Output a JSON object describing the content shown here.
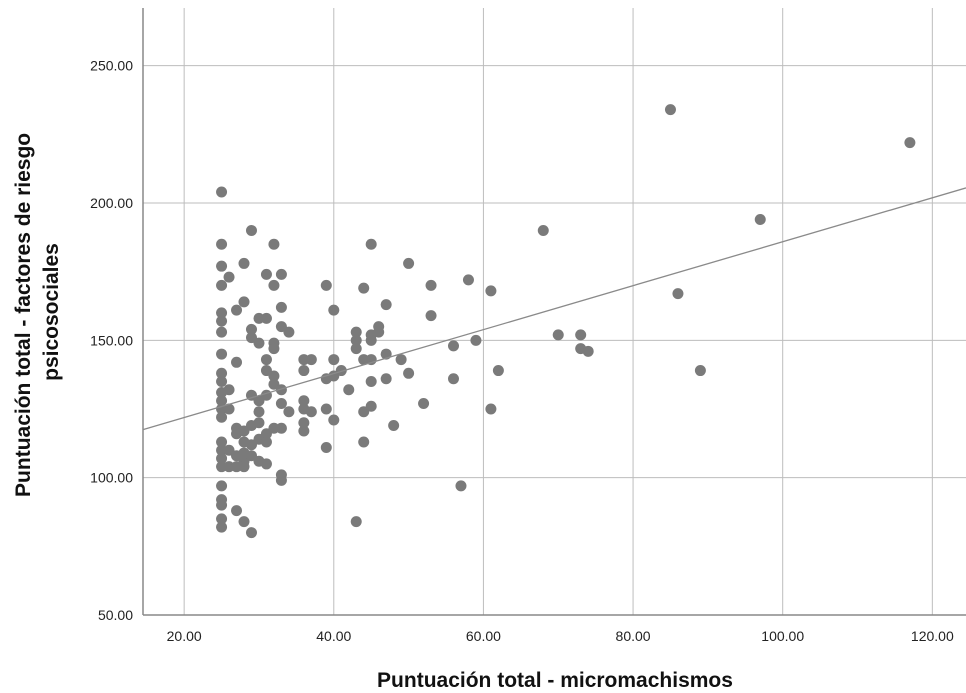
{
  "chart_data": {
    "type": "scatter",
    "title": "",
    "xlabel": "Puntuación total - micromachismos",
    "ylabel_lines": [
      "Puntuación total - factores de riesgo",
      "psicosociales"
    ],
    "xlim": [
      14.5,
      124.5
    ],
    "ylim": [
      50,
      271
    ],
    "x_ticks": [
      20,
      40,
      60,
      80,
      100,
      120
    ],
    "x_tick_labels": [
      "20.00",
      "40.00",
      "60.00",
      "80.00",
      "100.00",
      "120.00"
    ],
    "y_ticks": [
      50,
      100,
      150,
      200,
      250
    ],
    "y_tick_labels": [
      "50.00",
      "100.00",
      "150.00",
      "200.00",
      "250.00"
    ],
    "grid": true,
    "legend": "none",
    "point_color": "#7a7a7a",
    "line_color": "#8a8a8a",
    "fit_line": {
      "x": [
        14.5,
        124.5
      ],
      "y": [
        117.5,
        205.5
      ]
    },
    "points": [
      {
        "x": 25,
        "y": 204
      },
      {
        "x": 25,
        "y": 185
      },
      {
        "x": 25,
        "y": 177
      },
      {
        "x": 25,
        "y": 170
      },
      {
        "x": 25,
        "y": 160
      },
      {
        "x": 25,
        "y": 157
      },
      {
        "x": 25,
        "y": 153
      },
      {
        "x": 25,
        "y": 145
      },
      {
        "x": 25,
        "y": 138
      },
      {
        "x": 25,
        "y": 135
      },
      {
        "x": 25,
        "y": 131
      },
      {
        "x": 25,
        "y": 128
      },
      {
        "x": 25,
        "y": 125
      },
      {
        "x": 25,
        "y": 122
      },
      {
        "x": 25,
        "y": 113
      },
      {
        "x": 25,
        "y": 110
      },
      {
        "x": 25,
        "y": 107
      },
      {
        "x": 25,
        "y": 104
      },
      {
        "x": 25,
        "y": 97
      },
      {
        "x": 25,
        "y": 92
      },
      {
        "x": 25,
        "y": 90
      },
      {
        "x": 25,
        "y": 85
      },
      {
        "x": 25,
        "y": 82
      },
      {
        "x": 26,
        "y": 173
      },
      {
        "x": 26,
        "y": 132
      },
      {
        "x": 26,
        "y": 125
      },
      {
        "x": 26,
        "y": 110
      },
      {
        "x": 26,
        "y": 104
      },
      {
        "x": 27,
        "y": 161
      },
      {
        "x": 27,
        "y": 142
      },
      {
        "x": 27,
        "y": 118
      },
      {
        "x": 27,
        "y": 116
      },
      {
        "x": 27,
        "y": 108
      },
      {
        "x": 27,
        "y": 104
      },
      {
        "x": 27,
        "y": 88
      },
      {
        "x": 28,
        "y": 178
      },
      {
        "x": 28,
        "y": 164
      },
      {
        "x": 28,
        "y": 117
      },
      {
        "x": 28,
        "y": 113
      },
      {
        "x": 28,
        "y": 109
      },
      {
        "x": 28,
        "y": 106
      },
      {
        "x": 28,
        "y": 104
      },
      {
        "x": 28,
        "y": 84
      },
      {
        "x": 29,
        "y": 190
      },
      {
        "x": 29,
        "y": 154
      },
      {
        "x": 29,
        "y": 151
      },
      {
        "x": 29,
        "y": 130
      },
      {
        "x": 29,
        "y": 119
      },
      {
        "x": 29,
        "y": 112
      },
      {
        "x": 29,
        "y": 108
      },
      {
        "x": 29,
        "y": 80
      },
      {
        "x": 30,
        "y": 158
      },
      {
        "x": 30,
        "y": 149
      },
      {
        "x": 30,
        "y": 128
      },
      {
        "x": 30,
        "y": 124
      },
      {
        "x": 30,
        "y": 120
      },
      {
        "x": 30,
        "y": 114
      },
      {
        "x": 30,
        "y": 106
      },
      {
        "x": 31,
        "y": 174
      },
      {
        "x": 31,
        "y": 158
      },
      {
        "x": 31,
        "y": 143
      },
      {
        "x": 31,
        "y": 139
      },
      {
        "x": 31,
        "y": 130
      },
      {
        "x": 31,
        "y": 116
      },
      {
        "x": 31,
        "y": 113
      },
      {
        "x": 31,
        "y": 105
      },
      {
        "x": 32,
        "y": 185
      },
      {
        "x": 32,
        "y": 170
      },
      {
        "x": 32,
        "y": 149
      },
      {
        "x": 32,
        "y": 147
      },
      {
        "x": 32,
        "y": 137
      },
      {
        "x": 32,
        "y": 134
      },
      {
        "x": 32,
        "y": 118
      },
      {
        "x": 33,
        "y": 174
      },
      {
        "x": 33,
        "y": 162
      },
      {
        "x": 33,
        "y": 155
      },
      {
        "x": 33,
        "y": 132
      },
      {
        "x": 33,
        "y": 127
      },
      {
        "x": 33,
        "y": 118
      },
      {
        "x": 33,
        "y": 101
      },
      {
        "x": 33,
        "y": 99
      },
      {
        "x": 34,
        "y": 153
      },
      {
        "x": 34,
        "y": 124
      },
      {
        "x": 36,
        "y": 143
      },
      {
        "x": 36,
        "y": 139
      },
      {
        "x": 36,
        "y": 128
      },
      {
        "x": 36,
        "y": 125
      },
      {
        "x": 36,
        "y": 120
      },
      {
        "x": 36,
        "y": 117
      },
      {
        "x": 37,
        "y": 143
      },
      {
        "x": 37,
        "y": 124
      },
      {
        "x": 39,
        "y": 170
      },
      {
        "x": 39,
        "y": 136
      },
      {
        "x": 39,
        "y": 125
      },
      {
        "x": 39,
        "y": 111
      },
      {
        "x": 40,
        "y": 161
      },
      {
        "x": 40,
        "y": 143
      },
      {
        "x": 40,
        "y": 137
      },
      {
        "x": 40,
        "y": 121
      },
      {
        "x": 41,
        "y": 139
      },
      {
        "x": 42,
        "y": 132
      },
      {
        "x": 43,
        "y": 153
      },
      {
        "x": 43,
        "y": 150
      },
      {
        "x": 43,
        "y": 147
      },
      {
        "x": 43,
        "y": 84
      },
      {
        "x": 44,
        "y": 169
      },
      {
        "x": 44,
        "y": 143
      },
      {
        "x": 44,
        "y": 124
      },
      {
        "x": 44,
        "y": 113
      },
      {
        "x": 45,
        "y": 185
      },
      {
        "x": 45,
        "y": 152
      },
      {
        "x": 45,
        "y": 150
      },
      {
        "x": 45,
        "y": 143
      },
      {
        "x": 45,
        "y": 135
      },
      {
        "x": 45,
        "y": 126
      },
      {
        "x": 46,
        "y": 155
      },
      {
        "x": 46,
        "y": 153
      },
      {
        "x": 47,
        "y": 163
      },
      {
        "x": 47,
        "y": 145
      },
      {
        "x": 47,
        "y": 136
      },
      {
        "x": 48,
        "y": 119
      },
      {
        "x": 49,
        "y": 143
      },
      {
        "x": 50,
        "y": 178
      },
      {
        "x": 50,
        "y": 138
      },
      {
        "x": 52,
        "y": 127
      },
      {
        "x": 53,
        "y": 170
      },
      {
        "x": 53,
        "y": 159
      },
      {
        "x": 56,
        "y": 148
      },
      {
        "x": 56,
        "y": 136
      },
      {
        "x": 57,
        "y": 97
      },
      {
        "x": 58,
        "y": 172
      },
      {
        "x": 59,
        "y": 150
      },
      {
        "x": 61,
        "y": 168
      },
      {
        "x": 61,
        "y": 125
      },
      {
        "x": 62,
        "y": 139
      },
      {
        "x": 68,
        "y": 190
      },
      {
        "x": 70,
        "y": 152
      },
      {
        "x": 73,
        "y": 152
      },
      {
        "x": 73,
        "y": 147
      },
      {
        "x": 74,
        "y": 146
      },
      {
        "x": 85,
        "y": 234
      },
      {
        "x": 86,
        "y": 167
      },
      {
        "x": 89,
        "y": 139
      },
      {
        "x": 97,
        "y": 194
      },
      {
        "x": 117,
        "y": 222
      }
    ]
  }
}
